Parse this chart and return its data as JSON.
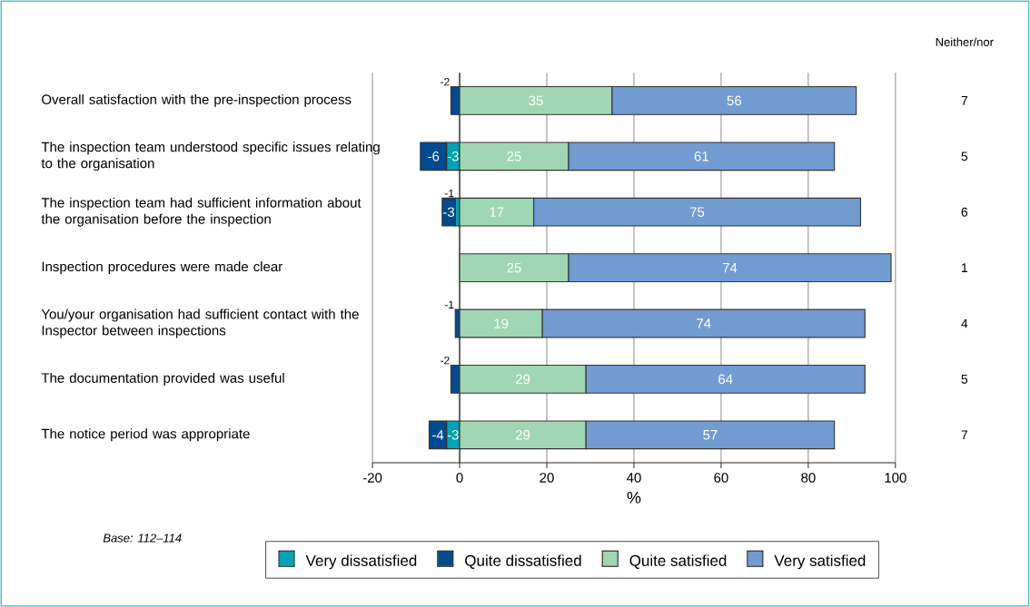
{
  "chart_data": [
    {
      "type": "bar",
      "orientation": "horizontal",
      "stacked": true,
      "data_labels": true,
      "grid": "x",
      "legend": "bottom",
      "xlabel": "%",
      "categories": [
        "Overall satisfaction with the pre-inspection process",
        "The inspection team understood specific issues relating to the organisation",
        "The inspection team had sufficient information about the organisation before the inspection",
        "Inspection procedures were made clear",
        "You/your organisation had sufficient contact with the Inspector between inspections",
        "The documentation provided was useful",
        "The notice period was appropriate"
      ],
      "series": [
        {
          "name": "Very dissatisfied",
          "color": "#00a3b4",
          "values": [
            null,
            -3,
            -1,
            null,
            null,
            null,
            -3
          ]
        },
        {
          "name": "Quite dissatisfied",
          "color": "#004a8f",
          "values": [
            -2,
            -6,
            -3,
            null,
            -1,
            -2,
            -4
          ]
        },
        {
          "name": "Quite satisfied",
          "color": "#a0d6b4",
          "values": [
            35,
            25,
            17,
            25,
            19,
            29,
            29
          ]
        },
        {
          "name": "Very satisfied",
          "color": "#729bd2",
          "values": [
            56,
            61,
            75,
            74,
            74,
            64,
            57
          ]
        }
      ],
      "xlim": [
        -20,
        100
      ],
      "xticks": [
        -20,
        0,
        20,
        40,
        60,
        80,
        100
      ],
      "annotations": [
        "*Base: 112–114*"
      ]
    },
    {
      "type": "other",
      "title": "Neither/nor",
      "value_labels": [
        "7",
        "5",
        "6",
        "1",
        "4",
        "5",
        "7"
      ]
    }
  ]
}
